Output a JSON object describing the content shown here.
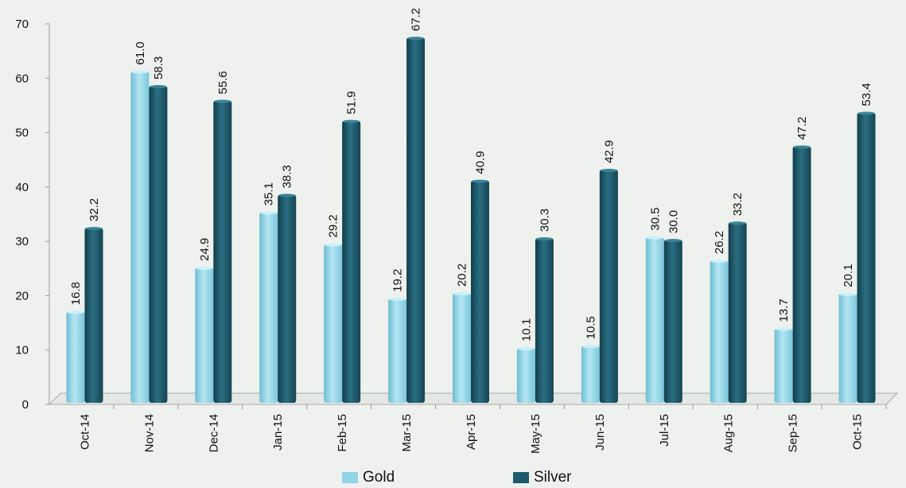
{
  "chart_data": {
    "type": "bar",
    "categories": [
      "Oct-14",
      "Nov-14",
      "Dec-14",
      "Jan-15",
      "Feb-15",
      "Mar-15",
      "Apr-15",
      "May-15",
      "Jun-15",
      "Jul-15",
      "Aug-15",
      "Sep-15",
      "Oct-15"
    ],
    "series": [
      {
        "name": "Gold",
        "color": "#8fd3e6",
        "values": [
          16.8,
          61.0,
          24.9,
          35.1,
          29.2,
          19.2,
          20.2,
          10.1,
          10.5,
          30.5,
          26.2,
          13.7,
          20.1
        ]
      },
      {
        "name": "Silver",
        "color": "#1d5a6c",
        "values": [
          32.2,
          58.3,
          55.6,
          38.3,
          51.9,
          67.2,
          40.9,
          30.3,
          42.9,
          30.0,
          33.2,
          47.2,
          53.4
        ]
      }
    ],
    "ylim": [
      0,
      70
    ],
    "yticks": [
      0,
      10,
      20,
      30,
      40,
      50,
      60,
      70
    ],
    "title": "",
    "xlabel": "",
    "ylabel": "",
    "legend": "bottom",
    "grid": false
  }
}
